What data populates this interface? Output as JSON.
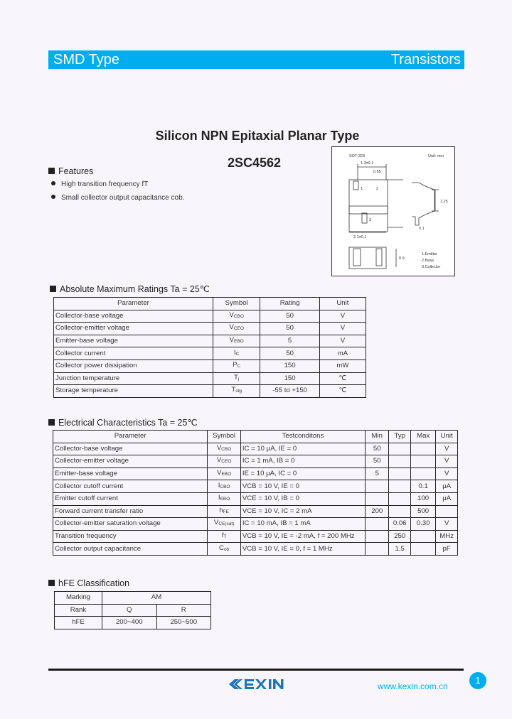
{
  "header": {
    "left": "SMD Type",
    "right": "Transistors",
    "accent_color": "#00aeef"
  },
  "title": "Silicon NPN Epitaxial Planar Type",
  "part_number": "2SC4562",
  "features": {
    "heading": "Features",
    "items": [
      "High transition frequency fT",
      "Small collector output capacitance cob."
    ]
  },
  "package": {
    "name": "SOT-323",
    "unit": "Unit: mm",
    "dims": [
      "1.3±0.1",
      "0.65",
      "2.1±0.1",
      "1.25",
      "0.9",
      "0.1"
    ],
    "pins": [
      "1.Emitter",
      "2.Base",
      "3.Collector"
    ]
  },
  "abs_max": {
    "heading": "Absolute Maximum Ratings Ta = 25℃",
    "columns": [
      "Parameter",
      "Symbol",
      "Rating",
      "Unit"
    ],
    "rows": [
      {
        "param": "Collector-base voltage",
        "sym": "V",
        "sub": "CBO",
        "rating": "50",
        "unit": "V"
      },
      {
        "param": "Collector-emitter voltage",
        "sym": "V",
        "sub": "CEO",
        "rating": "50",
        "unit": "V"
      },
      {
        "param": "Emitter-base voltage",
        "sym": "V",
        "sub": "EBO",
        "rating": "5",
        "unit": "V"
      },
      {
        "param": "Collector current",
        "sym": "I",
        "sub": "C",
        "rating": "50",
        "unit": "mA"
      },
      {
        "param": "Collector power dissipation",
        "sym": "P",
        "sub": "C",
        "rating": "150",
        "unit": "mW"
      },
      {
        "param": "Junction temperature",
        "sym": "T",
        "sub": "j",
        "rating": "150",
        "unit": "℃"
      },
      {
        "param": "Storage temperature",
        "sym": "T",
        "sub": "stg",
        "rating": "-55 to +150",
        "unit": "℃"
      }
    ]
  },
  "electrical": {
    "heading": "Electrical Characteristics Ta = 25℃",
    "columns": [
      "Parameter",
      "Symbol",
      "Testconditons",
      "Min",
      "Typ",
      "Max",
      "Unit"
    ],
    "rows": [
      {
        "param": "Collector-base voltage",
        "sym": "V",
        "sub": "CBO",
        "cond": "IC = 10 μA, IE = 0",
        "min": "50",
        "typ": "",
        "max": "",
        "unit": "V"
      },
      {
        "param": "Collector-emitter voltage",
        "sym": "V",
        "sub": "CEO",
        "cond": "IC = 1 mA, IB = 0",
        "min": "50",
        "typ": "",
        "max": "",
        "unit": "V"
      },
      {
        "param": "Emitter-base voltage",
        "sym": "V",
        "sub": "EBO",
        "cond": "IE = 10 μA, IC = 0",
        "min": "5",
        "typ": "",
        "max": "",
        "unit": "V"
      },
      {
        "param": "Collector cutoff current",
        "sym": "I",
        "sub": "CBO",
        "cond": "VCB = 10 V, IE = 0",
        "min": "",
        "typ": "",
        "max": "0.1",
        "unit": "μA"
      },
      {
        "param": "Emitter cutoff current",
        "sym": "I",
        "sub": "EBO",
        "cond": "VCE = 10 V, IB = 0",
        "min": "",
        "typ": "",
        "max": "100",
        "unit": "μA"
      },
      {
        "param": "Forward current transfer ratio",
        "sym": "h",
        "sub": "FE",
        "cond": "VCE = 10 V, IC = 2 mA",
        "min": "200",
        "typ": "",
        "max": "500",
        "unit": ""
      },
      {
        "param": "Collector-emitter saturation voltage",
        "sym": "V",
        "sub": "CE(sat)",
        "cond": "IC = 10 mA, IB = 1 mA",
        "min": "",
        "typ": "0.06",
        "max": "0.30",
        "unit": "V"
      },
      {
        "param": "Transition frequency",
        "sym": "f",
        "sub": "T",
        "cond": "VCB = 10 V, IE = -2 mA, f = 200 MHz",
        "min": "",
        "typ": "250",
        "max": "",
        "unit": "MHz"
      },
      {
        "param": "Collector output capacitance",
        "sym": "C",
        "sub": "ob",
        "cond": "VCB = 10 V, IE = 0, f = 1 MHz",
        "min": "",
        "typ": "1.5",
        "max": "",
        "unit": "pF"
      }
    ]
  },
  "hfe": {
    "heading": "hFE Classification",
    "marking_label": "Marking",
    "marking": "AM",
    "rank_label": "Rank",
    "ranks": [
      "Q",
      "R"
    ],
    "hfe_label": "hFE",
    "ranges": [
      "200~400",
      "250~500"
    ]
  },
  "footer": {
    "logo": "KEXIN",
    "website": "www.kexin.com.cn",
    "page": "1"
  }
}
